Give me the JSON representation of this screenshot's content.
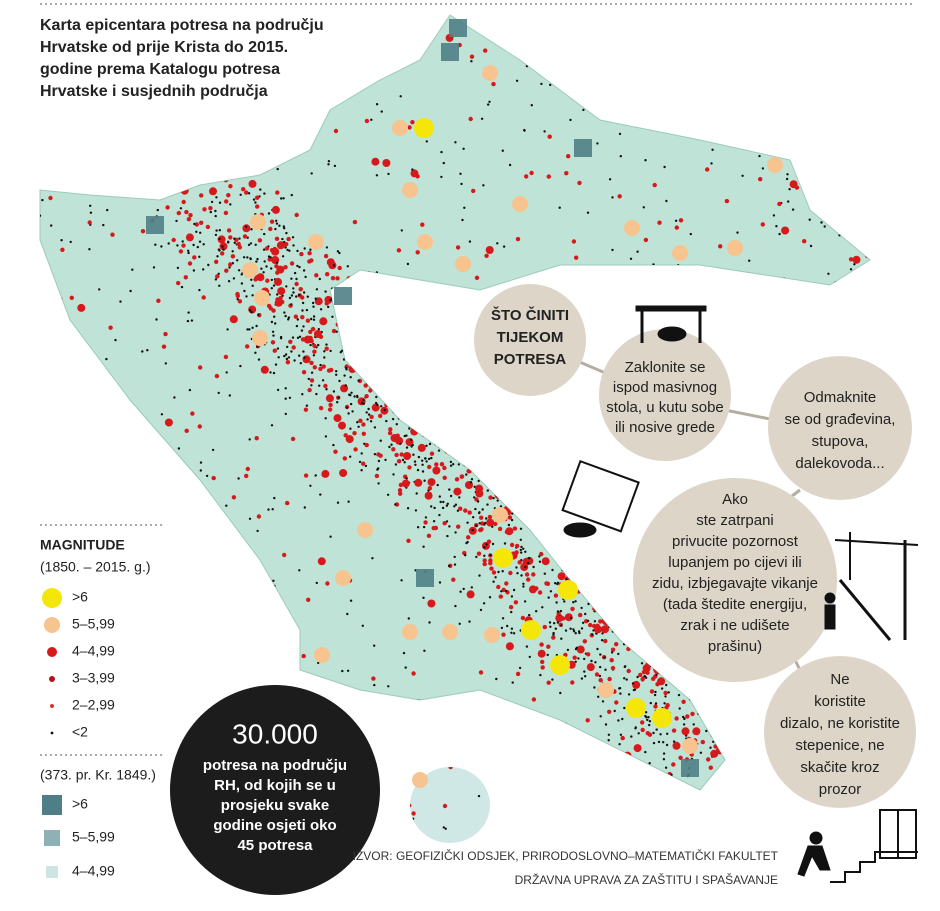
{
  "title": [
    "Karta epicentara potresa na području",
    "Hrvatske od prije Krista do 2015.",
    "godine prema Katalogu potresa",
    "Hrvatske i susjednih područja"
  ],
  "legend": {
    "heading": "MAGNITUDE",
    "period_recent": "(1850. – 2015. g.)",
    "recent": [
      ">6",
      "5–5,99",
      "4–4,99",
      "3–3,99",
      "2–2,99",
      "<2"
    ],
    "period_historic": "(373. pr. Kr. 1849.)",
    "historic": [
      ">6",
      "5–5,99",
      "4–4,99"
    ]
  },
  "stat": {
    "number": "30.000",
    "text": [
      "potresa na području",
      "RH, od kojih se u",
      "prosjeku svake",
      "godine osjeti oko",
      "45 potresa"
    ]
  },
  "tips": {
    "heading": [
      "ŠTO ČINITI",
      "TIJEKOM",
      "POTRESA"
    ],
    "items": [
      [
        "Zaklonite se",
        "ispod masivnog",
        "stola, u kutu sobe",
        "ili nosive grede"
      ],
      [
        "Odmaknite",
        "se od građevina,",
        "stupova,",
        "dalekovoda..."
      ],
      [
        "Ako",
        "ste zatrpani",
        "privucite pozornost",
        "lupanjem po cijevi ili",
        "zidu, izbjegavajte vikanje",
        "(tada štedite energiju,",
        "zrak i ne udišete",
        "prašinu)"
      ],
      [
        "Ne",
        "koristite",
        "dizalo, ne koristite",
        "stepenice, ne",
        "skačite kroz",
        "prozor"
      ]
    ]
  },
  "source": [
    "IZVOR: GEOFIZIČKI ODSJEK, PRIRODOSLOVNO–MATEMATIČKI FAKULTET",
    "DRŽAVNA UPRAVA ZA ZAŠTITU I SPAŠAVANJE"
  ]
}
